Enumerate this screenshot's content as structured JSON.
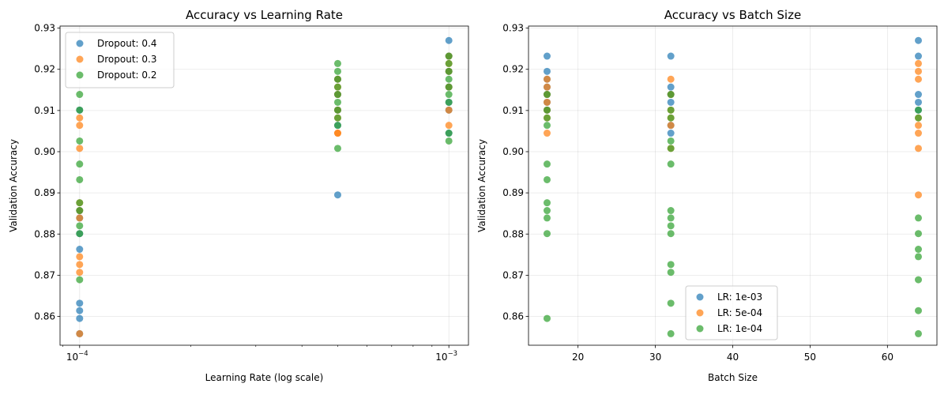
{
  "chart_data": [
    {
      "type": "scatter",
      "title": "Accuracy vs Learning Rate",
      "xlabel": "Learning Rate (log scale)",
      "ylabel": "Validation Accuracy",
      "xscale": "log",
      "xlim": [
        8.85e-05,
        0.00113
      ],
      "ylim": [
        0.853,
        0.9305
      ],
      "xticks": [
        {
          "value": 0.0001,
          "label": "10",
          "exp": "−4"
        },
        {
          "value": 0.001,
          "label": "10",
          "exp": "−3"
        }
      ],
      "yticks": [
        0.86,
        0.87,
        0.88,
        0.89,
        0.9,
        0.91,
        0.92,
        0.93
      ],
      "ytick_labels": [
        "0.86",
        "0.87",
        "0.88",
        "0.89",
        "0.90",
        "0.91",
        "0.92",
        "0.93"
      ],
      "grid": true,
      "legend_position": "upper-left",
      "series": [
        {
          "name": "Dropout: 0.4",
          "color": "#1f77b4",
          "points": [
            [
              0.0001,
              0.8763
            ],
            [
              0.0001,
              0.8632
            ],
            [
              0.0001,
              0.8614
            ],
            [
              0.0001,
              0.8595
            ],
            [
              0.0001,
              0.8558
            ],
            [
              0.0001,
              0.8839
            ],
            [
              0.0001,
              0.8857
            ],
            [
              0.0001,
              0.8801
            ],
            [
              0.0001,
              0.9101
            ],
            [
              0.0005,
              0.8895
            ],
            [
              0.0005,
              0.9064
            ],
            [
              0.0005,
              0.9101
            ],
            [
              0.0005,
              0.9176
            ],
            [
              0.0005,
              0.9139
            ],
            [
              0.001,
              0.927
            ],
            [
              0.001,
              0.9232
            ],
            [
              0.001,
              0.9195
            ],
            [
              0.001,
              0.9157
            ],
            [
              0.001,
              0.912
            ],
            [
              0.001,
              0.9101
            ],
            [
              0.001,
              0.9045
            ]
          ]
        },
        {
          "name": "Dropout: 0.3",
          "color": "#ff7f0e",
          "points": [
            [
              0.0001,
              0.9082
            ],
            [
              0.0001,
              0.9064
            ],
            [
              0.0001,
              0.9008
            ],
            [
              0.0001,
              0.8876
            ],
            [
              0.0001,
              0.8857
            ],
            [
              0.0001,
              0.8839
            ],
            [
              0.0001,
              0.8745
            ],
            [
              0.0001,
              0.8726
            ],
            [
              0.0001,
              0.8707
            ],
            [
              0.0001,
              0.8558
            ],
            [
              0.0005,
              0.9176
            ],
            [
              0.0005,
              0.9157
            ],
            [
              0.0005,
              0.9139
            ],
            [
              0.0005,
              0.9101
            ],
            [
              0.0005,
              0.9082
            ],
            [
              0.0005,
              0.9045
            ],
            [
              0.0005,
              0.9045
            ],
            [
              0.001,
              0.9232
            ],
            [
              0.001,
              0.9214
            ],
            [
              0.001,
              0.9195
            ],
            [
              0.001,
              0.9157
            ],
            [
              0.001,
              0.9101
            ],
            [
              0.001,
              0.9064
            ]
          ]
        },
        {
          "name": "Dropout: 0.2",
          "color": "#2ca02c",
          "points": [
            [
              0.0001,
              0.9139
            ],
            [
              0.0001,
              0.9101
            ],
            [
              0.0001,
              0.9026
            ],
            [
              0.0001,
              0.897
            ],
            [
              0.0001,
              0.8932
            ],
            [
              0.0001,
              0.8876
            ],
            [
              0.0001,
              0.8857
            ],
            [
              0.0001,
              0.882
            ],
            [
              0.0001,
              0.8801
            ],
            [
              0.0001,
              0.8689
            ],
            [
              0.0005,
              0.9214
            ],
            [
              0.0005,
              0.9195
            ],
            [
              0.0005,
              0.9176
            ],
            [
              0.0005,
              0.9157
            ],
            [
              0.0005,
              0.9139
            ],
            [
              0.0005,
              0.912
            ],
            [
              0.0005,
              0.9101
            ],
            [
              0.0005,
              0.9082
            ],
            [
              0.0005,
              0.9064
            ],
            [
              0.0005,
              0.9008
            ],
            [
              0.001,
              0.9232
            ],
            [
              0.001,
              0.9214
            ],
            [
              0.001,
              0.9195
            ],
            [
              0.001,
              0.9176
            ],
            [
              0.001,
              0.9157
            ],
            [
              0.001,
              0.9139
            ],
            [
              0.001,
              0.912
            ],
            [
              0.001,
              0.9045
            ],
            [
              0.001,
              0.9026
            ]
          ]
        }
      ]
    },
    {
      "type": "scatter",
      "title": "Accuracy vs Batch Size",
      "xlabel": "Batch Size",
      "ylabel": "Validation Accuracy",
      "xscale": "linear",
      "xlim": [
        13.6,
        66.4
      ],
      "ylim": [
        0.853,
        0.9305
      ],
      "xticks": [
        {
          "value": 20,
          "label": "20"
        },
        {
          "value": 30,
          "label": "30"
        },
        {
          "value": 40,
          "label": "40"
        },
        {
          "value": 50,
          "label": "50"
        },
        {
          "value": 60,
          "label": "60"
        }
      ],
      "yticks": [
        0.86,
        0.87,
        0.88,
        0.89,
        0.9,
        0.91,
        0.92,
        0.93
      ],
      "ytick_labels": [
        "0.86",
        "0.87",
        "0.88",
        "0.89",
        "0.90",
        "0.91",
        "0.92",
        "0.93"
      ],
      "grid": true,
      "legend_position": "lower-center",
      "series": [
        {
          "name": "LR: 1e-03",
          "color": "#1f77b4",
          "points": [
            [
              16,
              0.9232
            ],
            [
              16,
              0.9195
            ],
            [
              16,
              0.9176
            ],
            [
              16,
              0.9157
            ],
            [
              16,
              0.9139
            ],
            [
              16,
              0.912
            ],
            [
              16,
              0.9101
            ],
            [
              32,
              0.9232
            ],
            [
              32,
              0.9157
            ],
            [
              32,
              0.9139
            ],
            [
              32,
              0.912
            ],
            [
              32,
              0.9064
            ],
            [
              32,
              0.9045
            ],
            [
              64,
              0.927
            ],
            [
              64,
              0.9232
            ],
            [
              64,
              0.9139
            ],
            [
              64,
              0.912
            ],
            [
              64,
              0.9101
            ]
          ]
        },
        {
          "name": "LR: 5e-04",
          "color": "#ff7f0e",
          "points": [
            [
              16,
              0.9176
            ],
            [
              16,
              0.9157
            ],
            [
              16,
              0.9139
            ],
            [
              16,
              0.912
            ],
            [
              16,
              0.9101
            ],
            [
              16,
              0.9082
            ],
            [
              16,
              0.9045
            ],
            [
              32,
              0.9176
            ],
            [
              32,
              0.9139
            ],
            [
              32,
              0.9101
            ],
            [
              32,
              0.9082
            ],
            [
              32,
              0.9064
            ],
            [
              32,
              0.9008
            ],
            [
              64,
              0.9214
            ],
            [
              64,
              0.9195
            ],
            [
              64,
              0.9176
            ],
            [
              64,
              0.9082
            ],
            [
              64,
              0.9064
            ],
            [
              64,
              0.9045
            ],
            [
              64,
              0.9008
            ],
            [
              64,
              0.8895
            ]
          ]
        },
        {
          "name": "LR: 1e-04",
          "color": "#2ca02c",
          "points": [
            [
              16,
              0.9139
            ],
            [
              16,
              0.9101
            ],
            [
              16,
              0.9082
            ],
            [
              16,
              0.9064
            ],
            [
              16,
              0.897
            ],
            [
              16,
              0.8932
            ],
            [
              16,
              0.8876
            ],
            [
              16,
              0.8857
            ],
            [
              16,
              0.8839
            ],
            [
              16,
              0.8801
            ],
            [
              16,
              0.8595
            ],
            [
              32,
              0.9139
            ],
            [
              32,
              0.9101
            ],
            [
              32,
              0.9082
            ],
            [
              32,
              0.9026
            ],
            [
              32,
              0.9008
            ],
            [
              32,
              0.897
            ],
            [
              32,
              0.8857
            ],
            [
              32,
              0.8839
            ],
            [
              32,
              0.882
            ],
            [
              32,
              0.8801
            ],
            [
              32,
              0.8726
            ],
            [
              32,
              0.8707
            ],
            [
              32,
              0.8632
            ],
            [
              32,
              0.8558
            ],
            [
              64,
              0.9101
            ],
            [
              64,
              0.9082
            ],
            [
              64,
              0.8839
            ],
            [
              64,
              0.8801
            ],
            [
              64,
              0.8763
            ],
            [
              64,
              0.8745
            ],
            [
              64,
              0.8689
            ],
            [
              64,
              0.8614
            ],
            [
              64,
              0.8558
            ]
          ]
        }
      ]
    }
  ]
}
